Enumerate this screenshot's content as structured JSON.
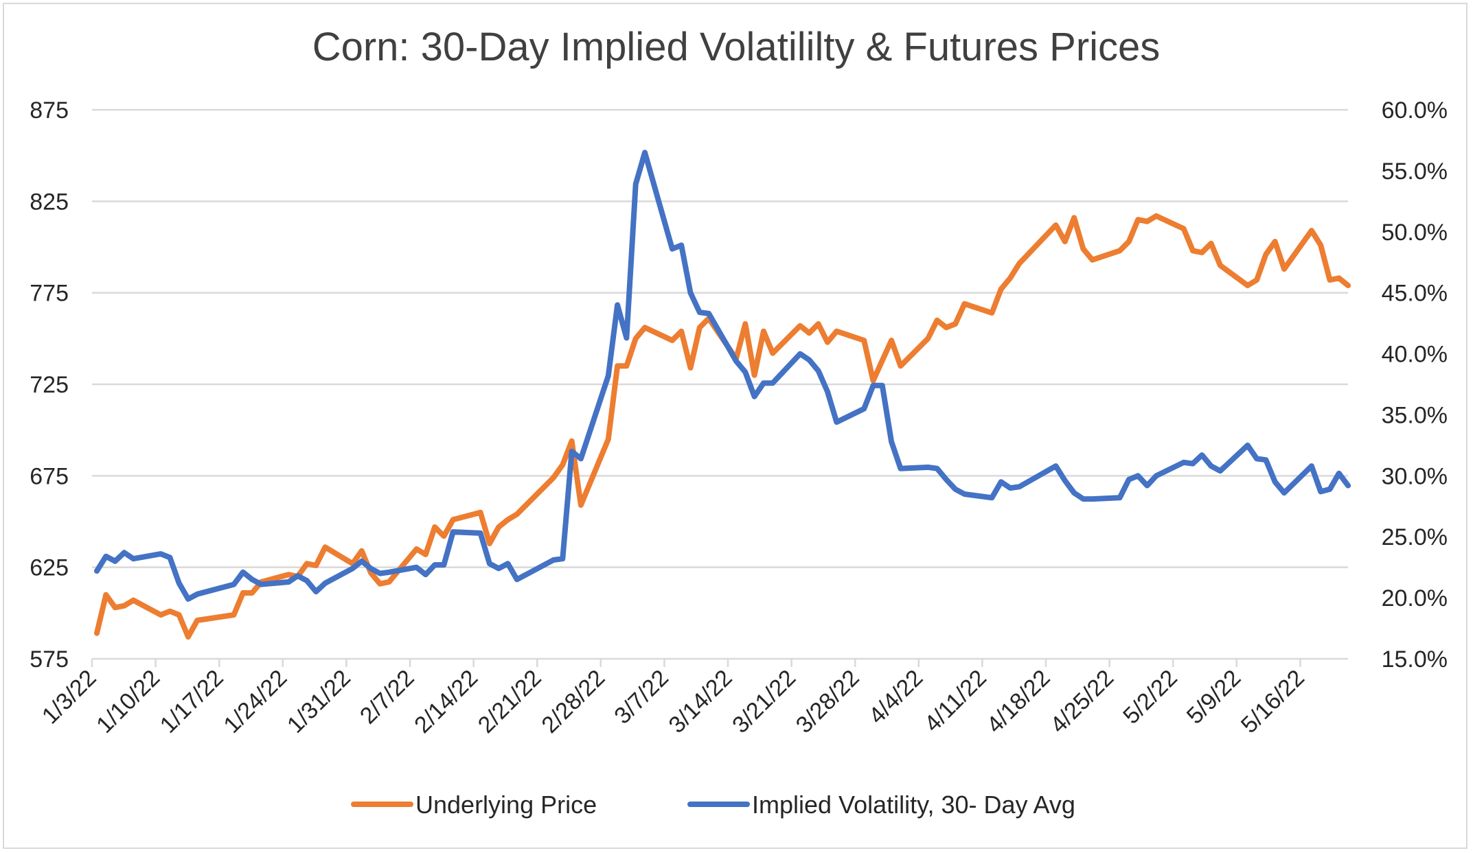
{
  "chart_data": {
    "type": "line",
    "title": "Corn: 30-Day Implied Volatililty & Futures Prices",
    "xlabel": "",
    "ylabel_left": "",
    "ylabel_right": "",
    "x_start": "2022-01-03",
    "x_end": "2022-05-20",
    "x_ticks": [
      "1/3/22",
      "1/10/22",
      "1/17/22",
      "1/24/22",
      "1/31/22",
      "2/7/22",
      "2/14/22",
      "2/21/22",
      "2/28/22",
      "3/7/22",
      "3/14/22",
      "3/21/22",
      "3/28/22",
      "4/4/22",
      "4/11/22",
      "4/18/22",
      "4/25/22",
      "5/2/22",
      "5/9/22",
      "5/16/22"
    ],
    "ylim_left": [
      575,
      875
    ],
    "yticks_left": [
      "575",
      "625",
      "675",
      "725",
      "775",
      "825",
      "875"
    ],
    "ylim_right": [
      15,
      60
    ],
    "yticks_right": [
      "15.0%",
      "20.0%",
      "25.0%",
      "30.0%",
      "35.0%",
      "40.0%",
      "45.0%",
      "50.0%",
      "55.0%",
      "60.0%"
    ],
    "grid": true,
    "legend_position": "bottom",
    "series": [
      {
        "name": "Underlying Price",
        "axis": "left",
        "color": "#ED7D31",
        "points": [
          [
            "2022-01-03",
            589
          ],
          [
            "2022-01-04",
            610
          ],
          [
            "2022-01-05",
            603
          ],
          [
            "2022-01-06",
            604
          ],
          [
            "2022-01-07",
            607
          ],
          [
            "2022-01-10",
            599
          ],
          [
            "2022-01-11",
            601
          ],
          [
            "2022-01-12",
            599
          ],
          [
            "2022-01-13",
            587
          ],
          [
            "2022-01-14",
            596
          ],
          [
            "2022-01-18",
            599
          ],
          [
            "2022-01-19",
            611
          ],
          [
            "2022-01-20",
            611
          ],
          [
            "2022-01-21",
            617
          ],
          [
            "2022-01-24",
            621
          ],
          [
            "2022-01-25",
            620
          ],
          [
            "2022-01-26",
            627
          ],
          [
            "2022-01-27",
            626
          ],
          [
            "2022-01-28",
            636
          ],
          [
            "2022-01-31",
            627
          ],
          [
            "2022-02-01",
            634
          ],
          [
            "2022-02-02",
            622
          ],
          [
            "2022-02-03",
            616
          ],
          [
            "2022-02-04",
            617
          ],
          [
            "2022-02-07",
            635
          ],
          [
            "2022-02-08",
            632
          ],
          [
            "2022-02-09",
            647
          ],
          [
            "2022-02-10",
            642
          ],
          [
            "2022-02-11",
            651
          ],
          [
            "2022-02-14",
            655
          ],
          [
            "2022-02-15",
            638
          ],
          [
            "2022-02-16",
            647
          ],
          [
            "2022-02-17",
            651
          ],
          [
            "2022-02-18",
            654
          ],
          [
            "2022-02-22",
            674
          ],
          [
            "2022-02-23",
            681
          ],
          [
            "2022-02-24",
            694
          ],
          [
            "2022-02-25",
            659
          ],
          [
            "2022-02-28",
            695
          ],
          [
            "2022-03-01",
            735
          ],
          [
            "2022-03-02",
            735
          ],
          [
            "2022-03-03",
            750
          ],
          [
            "2022-03-04",
            756
          ],
          [
            "2022-03-07",
            749
          ],
          [
            "2022-03-08",
            754
          ],
          [
            "2022-03-09",
            734
          ],
          [
            "2022-03-10",
            756
          ],
          [
            "2022-03-11",
            761
          ],
          [
            "2022-03-14",
            739
          ],
          [
            "2022-03-15",
            758
          ],
          [
            "2022-03-16",
            730
          ],
          [
            "2022-03-17",
            754
          ],
          [
            "2022-03-18",
            742
          ],
          [
            "2022-03-21",
            757
          ],
          [
            "2022-03-22",
            753
          ],
          [
            "2022-03-23",
            758
          ],
          [
            "2022-03-24",
            748
          ],
          [
            "2022-03-25",
            754
          ],
          [
            "2022-03-28",
            749
          ],
          [
            "2022-03-29",
            727
          ],
          [
            "2022-03-30",
            738
          ],
          [
            "2022-03-31",
            749
          ],
          [
            "2022-04-01",
            735
          ],
          [
            "2022-04-04",
            750
          ],
          [
            "2022-04-05",
            760
          ],
          [
            "2022-04-06",
            756
          ],
          [
            "2022-04-07",
            758
          ],
          [
            "2022-04-08",
            769
          ],
          [
            "2022-04-11",
            764
          ],
          [
            "2022-04-12",
            777
          ],
          [
            "2022-04-13",
            783
          ],
          [
            "2022-04-14",
            791
          ],
          [
            "2022-04-18",
            812
          ],
          [
            "2022-04-19",
            803
          ],
          [
            "2022-04-20",
            816
          ],
          [
            "2022-04-21",
            799
          ],
          [
            "2022-04-22",
            793
          ],
          [
            "2022-04-25",
            798
          ],
          [
            "2022-04-26",
            803
          ],
          [
            "2022-04-27",
            815
          ],
          [
            "2022-04-28",
            814
          ],
          [
            "2022-04-29",
            817
          ],
          [
            "2022-05-02",
            810
          ],
          [
            "2022-05-03",
            798
          ],
          [
            "2022-05-04",
            797
          ],
          [
            "2022-05-05",
            802
          ],
          [
            "2022-05-06",
            790
          ],
          [
            "2022-05-09",
            779
          ],
          [
            "2022-05-10",
            782
          ],
          [
            "2022-05-11",
            796
          ],
          [
            "2022-05-12",
            803
          ],
          [
            "2022-05-13",
            788
          ],
          [
            "2022-05-16",
            809
          ],
          [
            "2022-05-17",
            801
          ],
          [
            "2022-05-18",
            782
          ],
          [
            "2022-05-19",
            783
          ],
          [
            "2022-05-20",
            779
          ]
        ]
      },
      {
        "name": "Implied Volatility, 30- Day Avg",
        "axis": "right",
        "color": "#4472C4",
        "points": [
          [
            "2022-01-03",
            22.2
          ],
          [
            "2022-01-04",
            23.4
          ],
          [
            "2022-01-05",
            23.0
          ],
          [
            "2022-01-06",
            23.7
          ],
          [
            "2022-01-07",
            23.2
          ],
          [
            "2022-01-10",
            23.6
          ],
          [
            "2022-01-11",
            23.3
          ],
          [
            "2022-01-12",
            21.2
          ],
          [
            "2022-01-13",
            19.9
          ],
          [
            "2022-01-14",
            20.3
          ],
          [
            "2022-01-18",
            21.1
          ],
          [
            "2022-01-19",
            22.1
          ],
          [
            "2022-01-20",
            21.5
          ],
          [
            "2022-01-21",
            21.1
          ],
          [
            "2022-01-24",
            21.3
          ],
          [
            "2022-01-25",
            21.8
          ],
          [
            "2022-01-26",
            21.4
          ],
          [
            "2022-01-27",
            20.5
          ],
          [
            "2022-01-28",
            21.2
          ],
          [
            "2022-01-31",
            22.4
          ],
          [
            "2022-02-01",
            23.0
          ],
          [
            "2022-02-02",
            22.4
          ],
          [
            "2022-02-03",
            22.0
          ],
          [
            "2022-02-04",
            22.1
          ],
          [
            "2022-02-07",
            22.5
          ],
          [
            "2022-02-08",
            21.9
          ],
          [
            "2022-02-09",
            22.7
          ],
          [
            "2022-02-10",
            22.7
          ],
          [
            "2022-02-11",
            25.4
          ],
          [
            "2022-02-14",
            25.3
          ],
          [
            "2022-02-15",
            22.8
          ],
          [
            "2022-02-16",
            22.4
          ],
          [
            "2022-02-17",
            22.8
          ],
          [
            "2022-02-18",
            21.5
          ],
          [
            "2022-02-22",
            23.1
          ],
          [
            "2022-02-23",
            23.2
          ],
          [
            "2022-02-24",
            32.0
          ],
          [
            "2022-02-25",
            31.4
          ],
          [
            "2022-02-28",
            38.2
          ],
          [
            "2022-03-01",
            44.0
          ],
          [
            "2022-03-02",
            41.3
          ],
          [
            "2022-03-03",
            53.9
          ],
          [
            "2022-03-04",
            56.5
          ],
          [
            "2022-03-07",
            48.6
          ],
          [
            "2022-03-08",
            48.9
          ],
          [
            "2022-03-09",
            45.0
          ],
          [
            "2022-03-10",
            43.4
          ],
          [
            "2022-03-11",
            43.3
          ],
          [
            "2022-03-14",
            39.4
          ],
          [
            "2022-03-15",
            38.5
          ],
          [
            "2022-03-16",
            36.5
          ],
          [
            "2022-03-17",
            37.6
          ],
          [
            "2022-03-18",
            37.6
          ],
          [
            "2022-03-21",
            40.0
          ],
          [
            "2022-03-22",
            39.5
          ],
          [
            "2022-03-23",
            38.6
          ],
          [
            "2022-03-24",
            36.9
          ],
          [
            "2022-03-25",
            34.4
          ],
          [
            "2022-03-28",
            35.5
          ],
          [
            "2022-03-29",
            37.4
          ],
          [
            "2022-03-30",
            37.4
          ],
          [
            "2022-03-31",
            32.8
          ],
          [
            "2022-04-01",
            30.6
          ],
          [
            "2022-04-04",
            30.7
          ],
          [
            "2022-04-05",
            30.6
          ],
          [
            "2022-04-06",
            29.7
          ],
          [
            "2022-04-07",
            28.9
          ],
          [
            "2022-04-08",
            28.5
          ],
          [
            "2022-04-11",
            28.2
          ],
          [
            "2022-04-12",
            29.5
          ],
          [
            "2022-04-13",
            29.0
          ],
          [
            "2022-04-14",
            29.1
          ],
          [
            "2022-04-18",
            30.8
          ],
          [
            "2022-04-19",
            29.6
          ],
          [
            "2022-04-20",
            28.6
          ],
          [
            "2022-04-21",
            28.1
          ],
          [
            "2022-04-22",
            28.1
          ],
          [
            "2022-04-25",
            28.2
          ],
          [
            "2022-04-26",
            29.7
          ],
          [
            "2022-04-27",
            30.0
          ],
          [
            "2022-04-28",
            29.2
          ],
          [
            "2022-04-29",
            30.0
          ],
          [
            "2022-05-02",
            31.1
          ],
          [
            "2022-05-03",
            31.0
          ],
          [
            "2022-05-04",
            31.7
          ],
          [
            "2022-05-05",
            30.8
          ],
          [
            "2022-05-06",
            30.4
          ],
          [
            "2022-05-09",
            32.5
          ],
          [
            "2022-05-10",
            31.4
          ],
          [
            "2022-05-11",
            31.3
          ],
          [
            "2022-05-12",
            29.5
          ],
          [
            "2022-05-13",
            28.6
          ],
          [
            "2022-05-16",
            30.8
          ],
          [
            "2022-05-17",
            28.7
          ],
          [
            "2022-05-18",
            28.9
          ],
          [
            "2022-05-19",
            30.2
          ],
          [
            "2022-05-20",
            29.2
          ]
        ]
      }
    ]
  }
}
